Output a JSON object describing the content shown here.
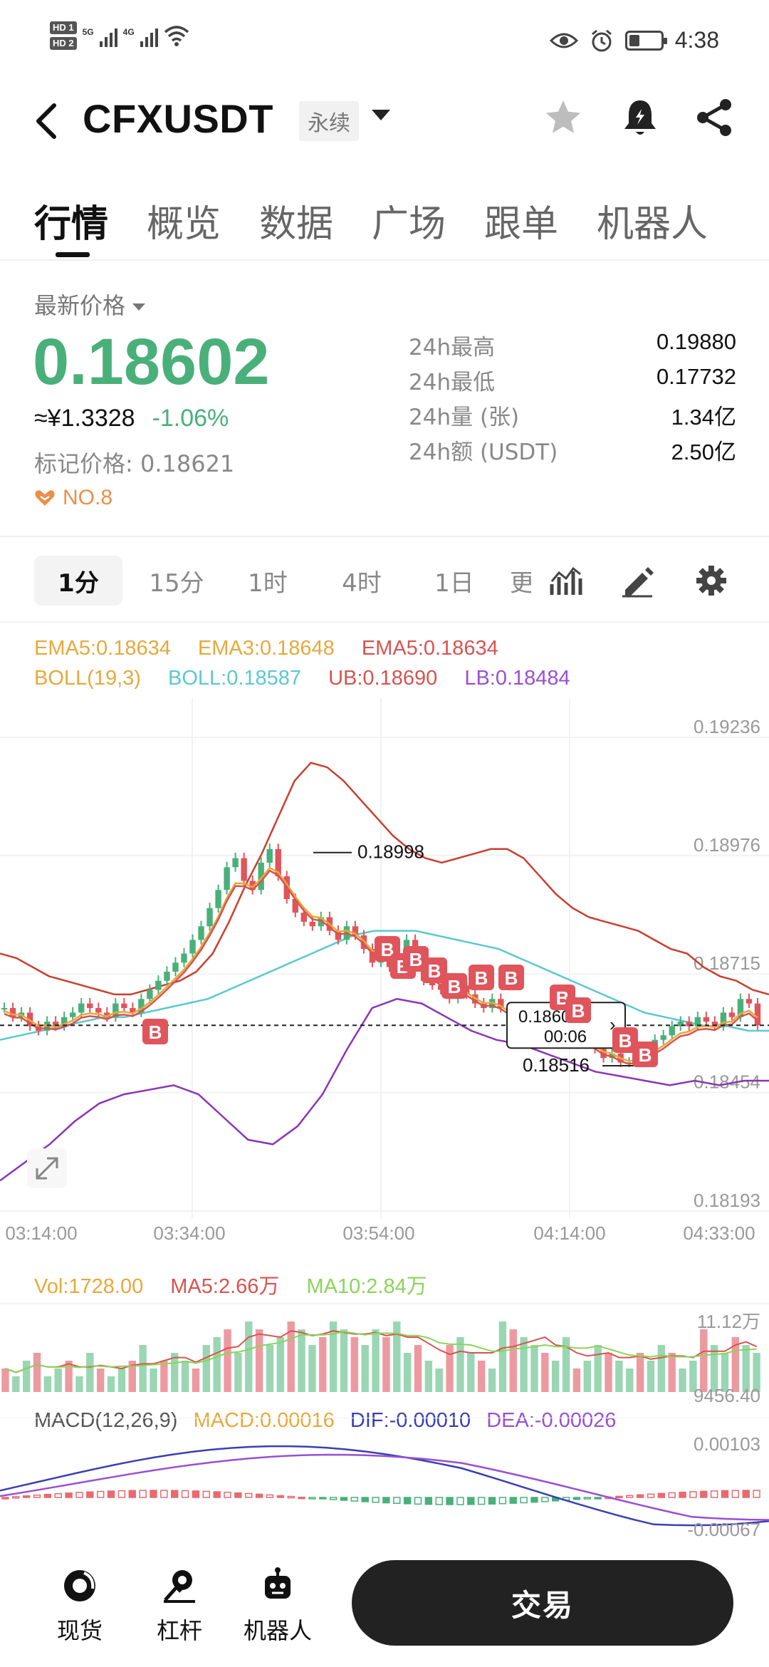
{
  "status_bar": {
    "hd1": "HD 1",
    "hd2": "HD 2",
    "net1": "5G",
    "net2": "4G",
    "time": "4:38"
  },
  "header": {
    "symbol": "CFXUSDT",
    "contract_type": "永续"
  },
  "tabs": [
    {
      "label": "行情",
      "active": true
    },
    {
      "label": "概览",
      "active": false
    },
    {
      "label": "数据",
      "active": false
    },
    {
      "label": "广场",
      "active": false
    },
    {
      "label": "跟单",
      "active": false
    },
    {
      "label": "机器人",
      "active": false
    }
  ],
  "price": {
    "latest_label": "最新价格",
    "last": "0.18602",
    "cny": "≈¥1.3328",
    "change_pct": "-1.06%",
    "mark_label": "标记价格: 0.18621",
    "rank": "NO.8",
    "up_color": "#49b07a",
    "down_color": "#e0555b"
  },
  "stats": [
    {
      "k": "24h最高",
      "v": "0.19880"
    },
    {
      "k": "24h最低",
      "v": "0.17732"
    },
    {
      "k": "24h量 (张)",
      "v": "1.34亿"
    },
    {
      "k": "24h额 (USDT)",
      "v": "2.50亿"
    }
  ],
  "timeframes": [
    {
      "label": "1分",
      "active": true
    },
    {
      "label": "15分",
      "active": false
    },
    {
      "label": "1时",
      "active": false
    },
    {
      "label": "4时",
      "active": false
    },
    {
      "label": "1日",
      "active": false
    },
    {
      "label": "更",
      "active": false
    }
  ],
  "toolbar_icons": [
    "indicator-icon",
    "draw-icon",
    "settings-icon"
  ],
  "indicators": {
    "ema5": "EMA5:0.18634",
    "ema3": "EMA3:0.18648",
    "ema5b": "EMA5:0.18634",
    "boll_params": "BOLL(19,3)",
    "boll": "BOLL:0.18587",
    "ub": "UB:0.18690",
    "lb": "LB:0.18484"
  },
  "chart_data": {
    "type": "candlestick",
    "y_axis_labels": [
      "0.19236",
      "0.18976",
      "0.18715",
      "0.18454",
      "0.18193"
    ],
    "x_axis_labels": [
      "03:14:00",
      "03:34:00",
      "03:54:00",
      "04:14:00",
      "04:33:00"
    ],
    "ylim": [
      0.18193,
      0.19236
    ],
    "current_price": "0.18602",
    "countdown": "00:06",
    "high_marker": "0.18998",
    "low_marker": "0.18516",
    "close": [
      0.1864,
      0.1862,
      0.1863,
      0.186,
      0.1859,
      0.1861,
      0.186,
      0.1862,
      0.1863,
      0.1865,
      0.1864,
      0.1863,
      0.1862,
      0.1865,
      0.1864,
      0.1863,
      0.1866,
      0.1868,
      0.187,
      0.1872,
      0.1874,
      0.1876,
      0.1879,
      0.1882,
      0.1886,
      0.189,
      0.1895,
      0.1897,
      0.1892,
      0.189,
      0.1896,
      0.1899,
      0.1893,
      0.1888,
      0.1885,
      0.1883,
      0.1882,
      0.1884,
      0.1881,
      0.1879,
      0.1882,
      0.188,
      0.1877,
      0.1874,
      0.1876,
      0.1873,
      0.1876,
      0.1879,
      0.1874,
      0.187,
      0.1869,
      0.1868,
      0.1866,
      0.1869,
      0.1867,
      0.1865,
      0.1864,
      0.1866,
      0.1864,
      0.1862,
      0.1861,
      0.1862,
      0.186,
      0.186,
      0.1861,
      0.1859,
      0.1858,
      0.1856,
      0.1856,
      0.1855,
      0.1853,
      0.1854,
      0.1852,
      0.1852,
      0.1854,
      0.1855,
      0.1857,
      0.1858,
      0.186,
      0.1861,
      0.186,
      0.1862,
      0.1861,
      0.186,
      0.1863,
      0.1862,
      0.1866,
      0.1865,
      0.18602
    ],
    "ma_upper": [
      0.1876,
      0.1875,
      0.1873,
      0.1871,
      0.187,
      0.1869,
      0.1868,
      0.1867,
      0.1867,
      0.1868,
      0.1869,
      0.187,
      0.1872,
      0.1876,
      0.1883,
      0.1891,
      0.1898,
      0.1906,
      0.1914,
      0.1918,
      0.1917,
      0.1914,
      0.191,
      0.1906,
      0.1902,
      0.1899,
      0.1897,
      0.1896,
      0.1897,
      0.1898,
      0.1899,
      0.1899,
      0.1897,
      0.1893,
      0.1889,
      0.1886,
      0.1884,
      0.1883,
      0.1882,
      0.1881,
      0.1879,
      0.1877,
      0.1876,
      0.1873,
      0.1871,
      0.187,
      0.1868,
      0.1867
    ],
    "boll_mid": [
      0.1857,
      0.1858,
      0.1859,
      0.186,
      0.1861,
      0.1862,
      0.1862,
      0.1863,
      0.1864,
      0.1865,
      0.1866,
      0.1868,
      0.187,
      0.1872,
      0.1874,
      0.1876,
      0.1878,
      0.188,
      0.1881,
      0.1881,
      0.1881,
      0.188,
      0.1879,
      0.1878,
      0.1877,
      0.1875,
      0.1873,
      0.1871,
      0.1869,
      0.1867,
      0.1865,
      0.1863,
      0.1862,
      0.1861,
      0.186,
      0.186,
      0.1859,
      0.1859
    ],
    "lb_line": [
      0.1826,
      0.183,
      0.1834,
      0.1839,
      0.1843,
      0.1845,
      0.1846,
      0.1847,
      0.1845,
      0.184,
      0.1835,
      0.1834,
      0.1838,
      0.1845,
      0.1855,
      0.1864,
      0.1866,
      0.1865,
      0.1862,
      0.1859,
      0.1857,
      0.1856,
      0.1854,
      0.1852,
      0.185,
      0.1849,
      0.1848,
      0.1847,
      0.1848,
      0.1847,
      0.1848,
      0.1848
    ],
    "buy_signals": 11,
    "sell_signals": 12
  },
  "volume": {
    "vol": "Vol:1728.00",
    "ma5": "MA5:2.66万",
    "ma10": "MA10:2.84万",
    "max_label": "11.12万",
    "min_label": "9456.40"
  },
  "macd": {
    "params": "MACD(12,26,9)",
    "macd": "MACD:0.00016",
    "dif": "DIF:-0.00010",
    "dea": "DEA:-0.00026",
    "max_label": "0.00103",
    "min_label": "-0.00067"
  },
  "bottom_nav": {
    "spot": "现货",
    "margin": "杠杆",
    "bot": "机器人",
    "trade": "交易"
  }
}
